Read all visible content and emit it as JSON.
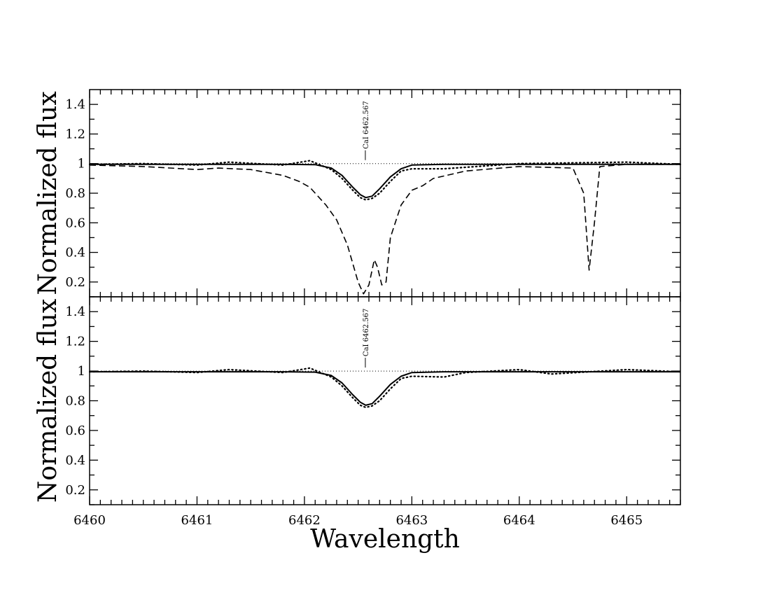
{
  "chart_data": [
    {
      "type": "line",
      "panel": "top",
      "ylabel": "Normalized flux",
      "xlim": [
        6460,
        6465.5
      ],
      "ylim": [
        0.1,
        1.5
      ],
      "yticks": [
        0.2,
        0.4,
        0.6,
        0.8,
        1,
        1.2,
        1.4
      ],
      "ytick_labels": [
        "0.2",
        "0.4",
        "0.6",
        "0.8",
        "1",
        "1.2",
        "1.4"
      ],
      "annotation": {
        "label": "CaI 6462.567",
        "x": 6462.567
      },
      "series": [
        {
          "style": "solid",
          "x": [
            6460.0,
            6461.0,
            6461.8,
            6462.1,
            6462.25,
            6462.35,
            6462.45,
            6462.52,
            6462.57,
            6462.63,
            6462.7,
            6462.8,
            6462.9,
            6463.0,
            6463.3,
            6464.0,
            6465.5
          ],
          "y": [
            0.995,
            0.995,
            0.995,
            0.993,
            0.97,
            0.92,
            0.84,
            0.79,
            0.77,
            0.78,
            0.83,
            0.91,
            0.965,
            0.99,
            0.995,
            0.995,
            0.995
          ]
        },
        {
          "style": "dotted",
          "x": [
            6460.0,
            6460.5,
            6461.0,
            6461.3,
            6461.8,
            6462.05,
            6462.15,
            6462.25,
            6462.35,
            6462.45,
            6462.52,
            6462.57,
            6462.63,
            6462.7,
            6462.8,
            6462.9,
            6463.0,
            6463.3,
            6464.0,
            6465.0,
            6465.5
          ],
          "y": [
            0.995,
            1.0,
            0.99,
            1.01,
            0.99,
            1.02,
            0.99,
            0.96,
            0.9,
            0.82,
            0.77,
            0.755,
            0.765,
            0.8,
            0.88,
            0.95,
            0.965,
            0.965,
            1.0,
            1.01,
            0.995
          ]
        },
        {
          "style": "dashed",
          "x": [
            6460.0,
            6460.5,
            6461.0,
            6461.2,
            6461.5,
            6461.8,
            6461.95,
            6462.0,
            6462.05,
            6462.1,
            6462.2,
            6462.3,
            6462.4,
            6462.5,
            6462.55,
            6462.6,
            6462.65,
            6462.68,
            6462.72,
            6462.76,
            6462.8,
            6462.9,
            6463.0,
            6463.1,
            6463.2,
            6463.5,
            6464.0,
            6464.5,
            6464.6,
            6464.65,
            6464.7,
            6464.75,
            6465.0,
            6465.5
          ],
          "y": [
            0.99,
            0.98,
            0.96,
            0.97,
            0.96,
            0.92,
            0.88,
            0.86,
            0.84,
            0.8,
            0.72,
            0.62,
            0.45,
            0.2,
            0.12,
            0.18,
            0.35,
            0.3,
            0.18,
            0.2,
            0.5,
            0.72,
            0.82,
            0.85,
            0.9,
            0.95,
            0.98,
            0.97,
            0.8,
            0.28,
            0.6,
            0.98,
            0.995,
            0.995
          ]
        },
        {
          "style": "reference",
          "x": [
            6460.0,
            6465.5
          ],
          "y": [
            1.0,
            1.0
          ]
        }
      ]
    },
    {
      "type": "line",
      "panel": "bottom",
      "ylabel": "Normalized flux",
      "xlabel": "Wavelength",
      "xlim": [
        6460,
        6465.5
      ],
      "ylim": [
        0.1,
        1.5
      ],
      "xticks": [
        6460,
        6461,
        6462,
        6463,
        6464,
        6465
      ],
      "xtick_labels": [
        "6460",
        "6461",
        "6462",
        "6463",
        "6464",
        "6465"
      ],
      "yticks": [
        0.2,
        0.4,
        0.6,
        0.8,
        1,
        1.2,
        1.4
      ],
      "ytick_labels": [
        "0.2",
        "0.4",
        "0.6",
        "0.8",
        "1",
        "1.2",
        "1.4"
      ],
      "annotation": {
        "label": "CaI 6462.567",
        "x": 6462.567
      },
      "series": [
        {
          "style": "solid",
          "x": [
            6460.0,
            6461.0,
            6461.8,
            6462.1,
            6462.25,
            6462.35,
            6462.45,
            6462.52,
            6462.57,
            6462.63,
            6462.7,
            6462.8,
            6462.9,
            6463.0,
            6463.3,
            6464.0,
            6465.5
          ],
          "y": [
            0.995,
            0.995,
            0.995,
            0.993,
            0.97,
            0.92,
            0.84,
            0.79,
            0.77,
            0.78,
            0.83,
            0.91,
            0.965,
            0.99,
            0.995,
            0.995,
            0.995
          ]
        },
        {
          "style": "dotted",
          "x": [
            6460.0,
            6460.5,
            6461.0,
            6461.3,
            6461.8,
            6462.05,
            6462.15,
            6462.25,
            6462.35,
            6462.45,
            6462.52,
            6462.57,
            6462.63,
            6462.7,
            6462.8,
            6462.9,
            6463.0,
            6463.3,
            6463.5,
            6464.0,
            6464.3,
            6465.0,
            6465.5
          ],
          "y": [
            0.995,
            1.0,
            0.99,
            1.01,
            0.99,
            1.02,
            0.99,
            0.96,
            0.9,
            0.82,
            0.77,
            0.755,
            0.765,
            0.8,
            0.88,
            0.95,
            0.965,
            0.96,
            0.99,
            1.01,
            0.98,
            1.01,
            0.995
          ]
        },
        {
          "style": "reference",
          "x": [
            6460.0,
            6465.5
          ],
          "y": [
            1.0,
            1.0
          ]
        }
      ]
    }
  ]
}
